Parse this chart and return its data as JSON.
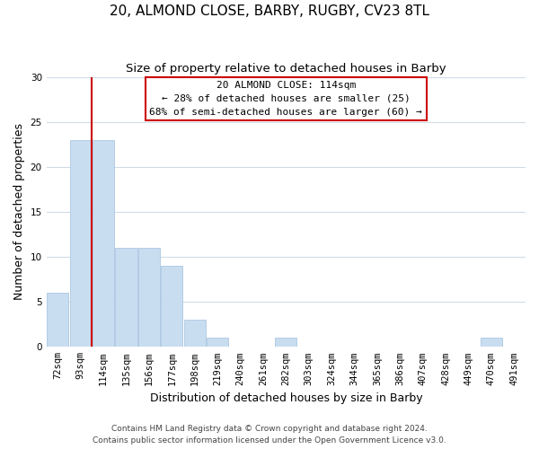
{
  "title": "20, ALMOND CLOSE, BARBY, RUGBY, CV23 8TL",
  "subtitle": "Size of property relative to detached houses in Barby",
  "xlabel": "Distribution of detached houses by size in Barby",
  "ylabel": "Number of detached properties",
  "bar_labels": [
    "72sqm",
    "93sqm",
    "114sqm",
    "135sqm",
    "156sqm",
    "177sqm",
    "198sqm",
    "219sqm",
    "240sqm",
    "261sqm",
    "282sqm",
    "303sqm",
    "324sqm",
    "344sqm",
    "365sqm",
    "386sqm",
    "407sqm",
    "428sqm",
    "449sqm",
    "470sqm",
    "491sqm"
  ],
  "bar_values": [
    6,
    23,
    23,
    11,
    11,
    9,
    3,
    1,
    0,
    0,
    1,
    0,
    0,
    0,
    0,
    0,
    0,
    0,
    0,
    1,
    0
  ],
  "highlight_index": 2,
  "bar_color": "#c9ddf0",
  "bar_edge_color": "#a0c0df",
  "highlight_line_color": "#cc0000",
  "ylim": [
    0,
    30
  ],
  "yticks": [
    0,
    5,
    10,
    15,
    20,
    25,
    30
  ],
  "annotation_title": "20 ALMOND CLOSE: 114sqm",
  "annotation_line1": "← 28% of detached houses are smaller (25)",
  "annotation_line2": "68% of semi-detached houses are larger (60) →",
  "annotation_box_color": "#ffffff",
  "annotation_box_edge_color": "#cc0000",
  "footer_line1": "Contains HM Land Registry data © Crown copyright and database right 2024.",
  "footer_line2": "Contains public sector information licensed under the Open Government Licence v3.0.",
  "background_color": "#ffffff",
  "grid_color": "#d0dce8",
  "title_fontsize": 11,
  "subtitle_fontsize": 9.5,
  "axis_label_fontsize": 9,
  "tick_fontsize": 7.5,
  "annotation_fontsize": 8,
  "footer_fontsize": 6.5
}
